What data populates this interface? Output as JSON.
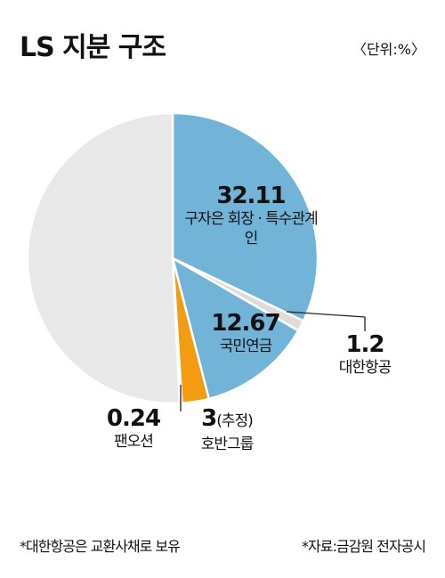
{
  "chart_data": {
    "type": "pie",
    "title": "LS 지분 구조",
    "unit_note": "〈단위:%〉",
    "categories": [
      "구자은 회장 · 특수관계인",
      "대한항공",
      "국민연금",
      "호반그룹",
      "팬오션",
      null
    ],
    "values": [
      32.11,
      1.2,
      12.67,
      3,
      0.24,
      50.78
    ],
    "value_notes": [
      null,
      null,
      null,
      "(추정)",
      null,
      null
    ],
    "colors": [
      "#72b4d8",
      "#dcdcdc",
      "#72b4d8",
      "#f39c12",
      "#ffffff",
      "#e9e9e9"
    ],
    "footnotes": [
      "*대한항공은 교환사채로 보유",
      "*자료:금감원 전자공시"
    ]
  }
}
